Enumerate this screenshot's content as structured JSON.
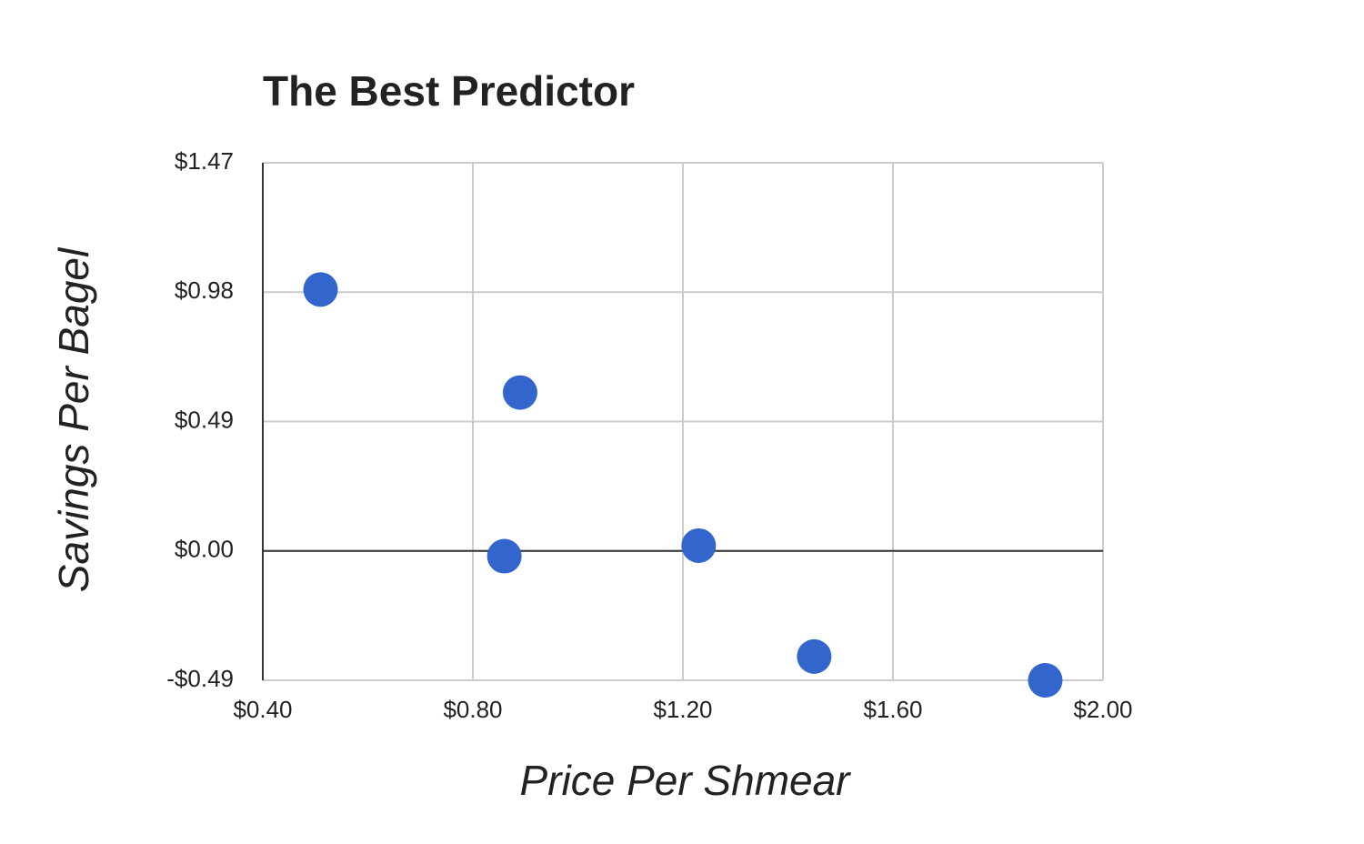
{
  "chart_data": {
    "type": "scatter",
    "title": "The Best Predictor",
    "x_label": "Price Per Shmear",
    "y_label": "Savings Per Bagel",
    "x": [
      0.51,
      0.89,
      0.86,
      1.23,
      1.45,
      1.89
    ],
    "values": [
      0.99,
      0.6,
      -0.02,
      0.02,
      -0.4,
      -0.49
    ],
    "color": "#3366cc",
    "xlim": [
      0.4,
      2.0
    ],
    "xticks": [
      {
        "value": 0.4,
        "label": "$0.40"
      },
      {
        "value": 0.8,
        "label": "$0.80"
      },
      {
        "value": 1.2,
        "label": "$1.20"
      },
      {
        "value": 1.6,
        "label": "$1.60"
      },
      {
        "value": 2.0,
        "label": "$2.00"
      }
    ],
    "ylim": [
      -0.49,
      1.47
    ],
    "yticks": [
      {
        "value": -0.49,
        "label": "-$0.49"
      },
      {
        "value": 0,
        "label": "$0.00"
      },
      {
        "value": 0.49,
        "label": "$0.49"
      },
      {
        "value": 0.98,
        "label": "$0.98"
      },
      {
        "value": 1.47,
        "label": "$1.47"
      }
    ],
    "grid": true
  }
}
